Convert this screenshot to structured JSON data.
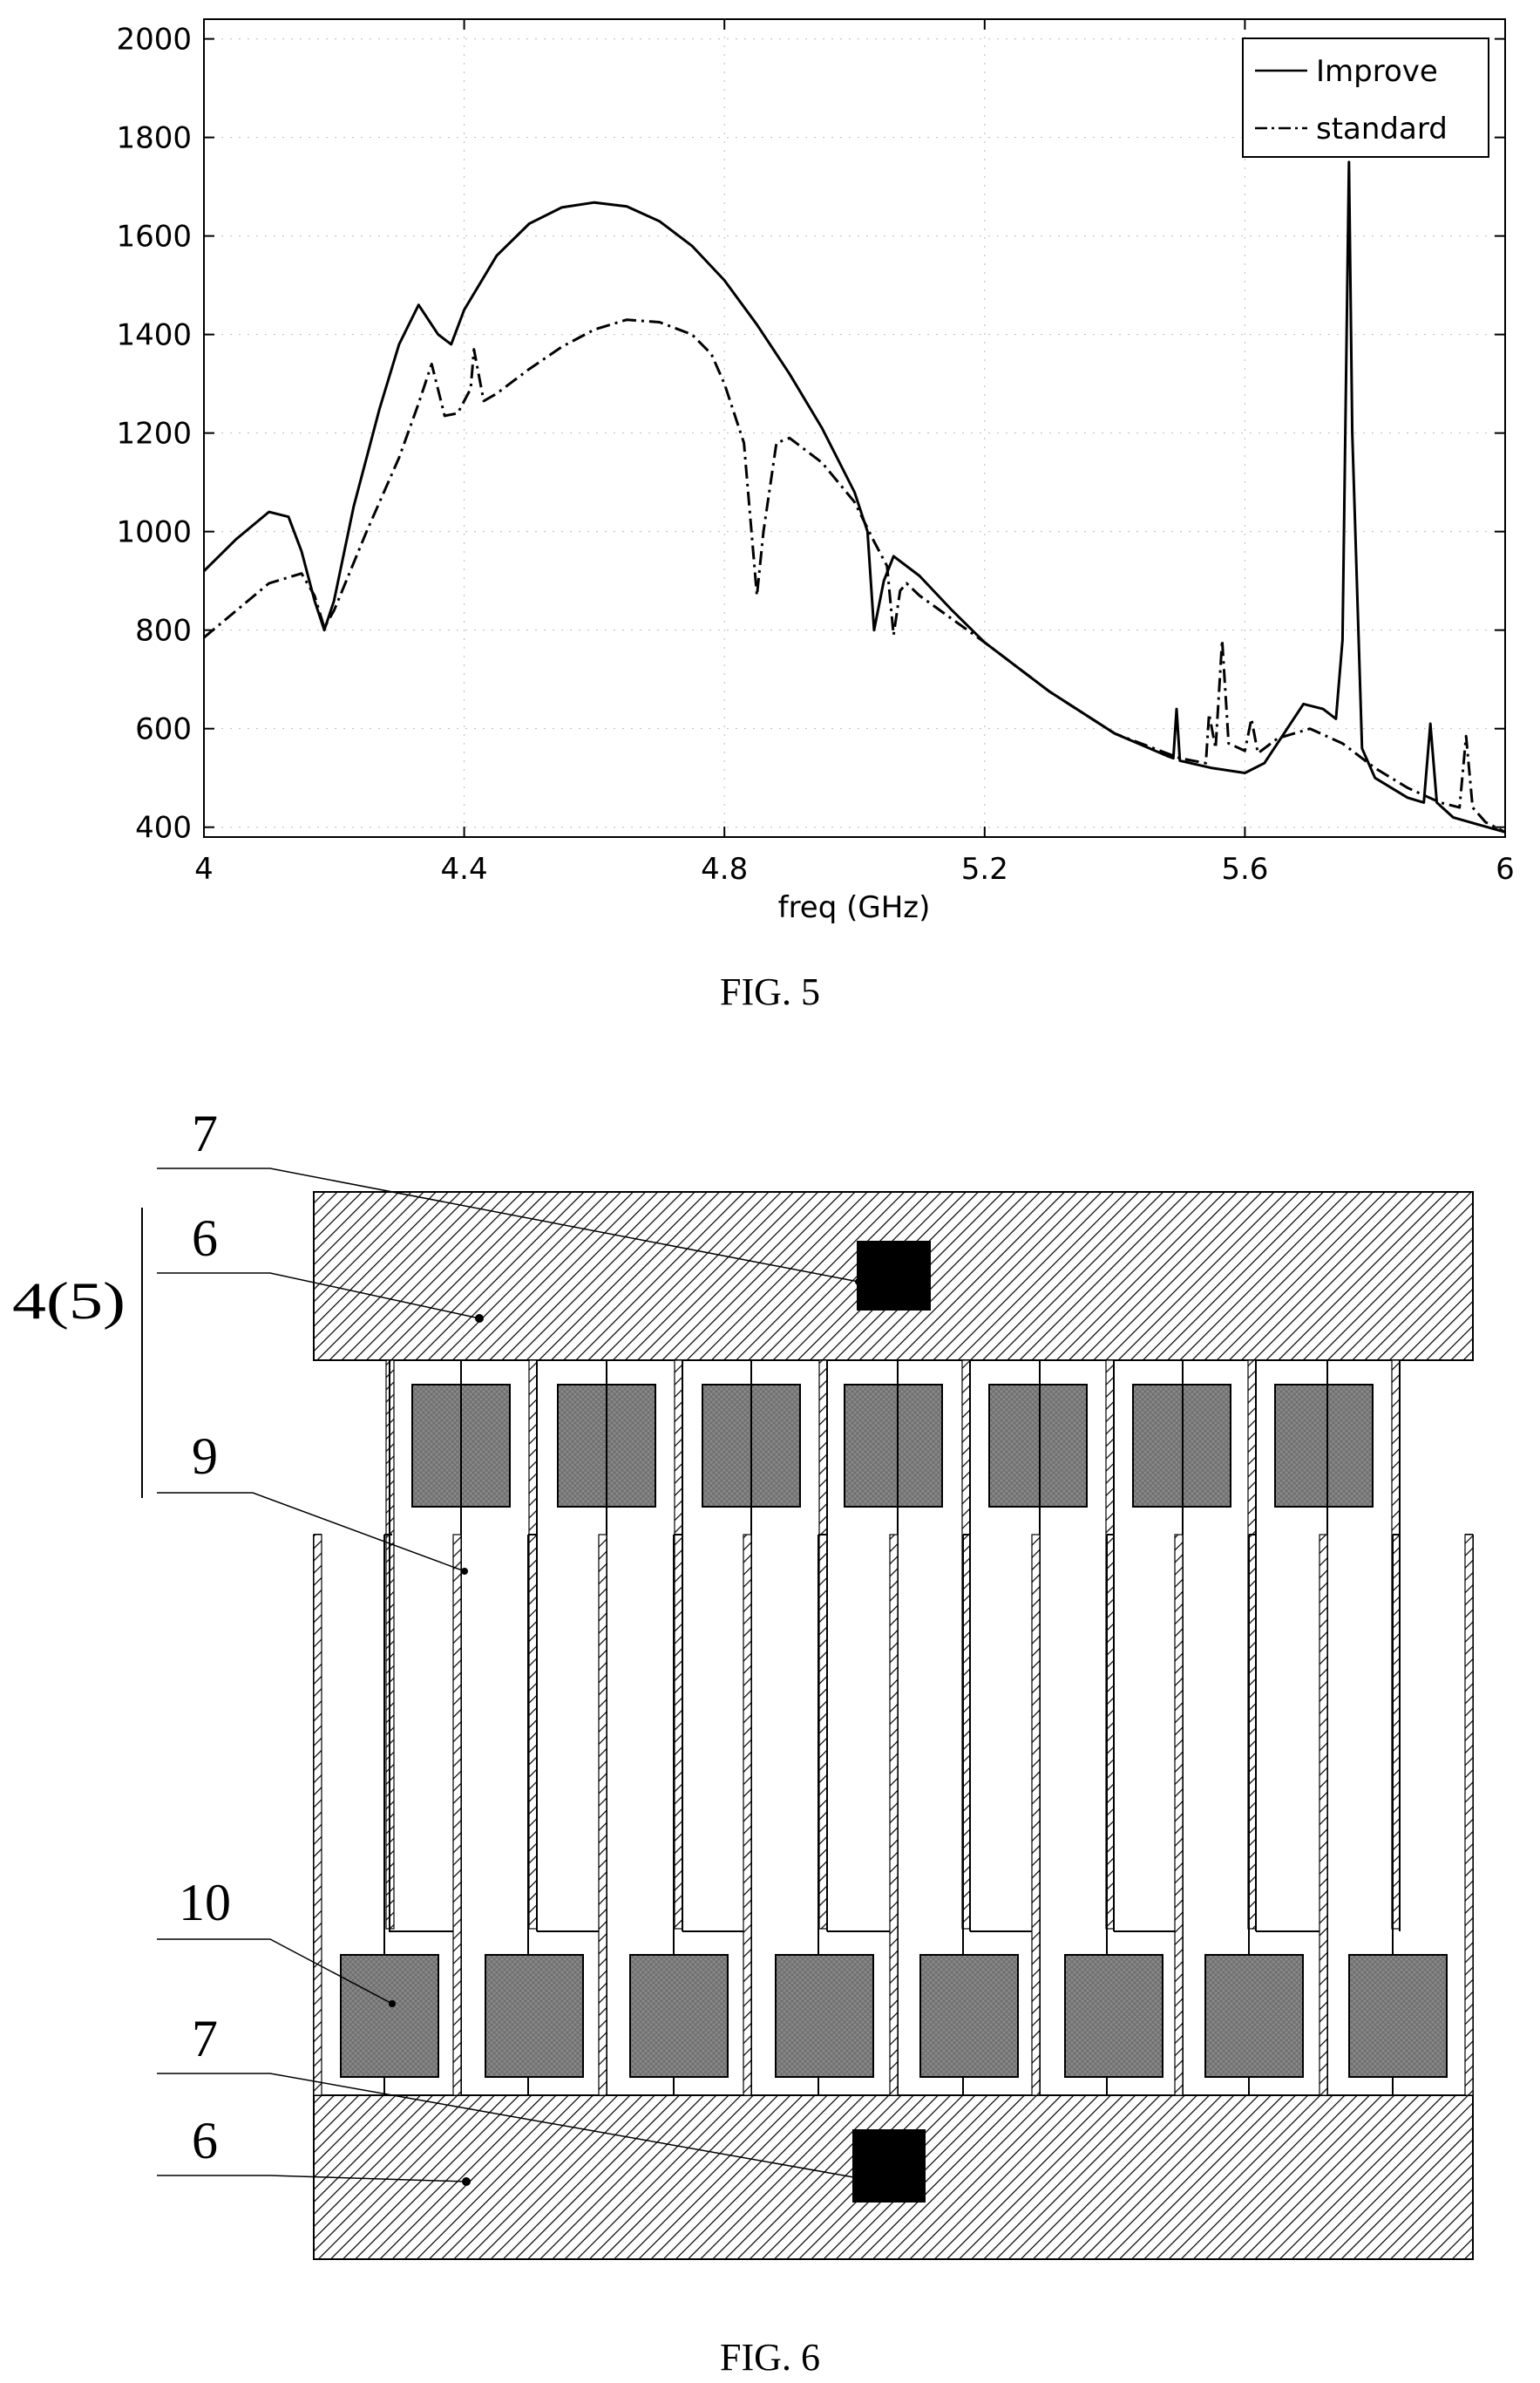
{
  "figures": {
    "fig5": {
      "caption": "FIG. 5"
    },
    "fig6": {
      "caption": "FIG. 6",
      "labels": {
        "ref_7_top": "7",
        "ref_6_top": "6",
        "ref_4_5": "4(5)",
        "ref_9": "9",
        "ref_10": "10",
        "ref_7_bottom": "7",
        "ref_6_bottom": "6"
      }
    }
  },
  "chart_data": {
    "type": "line",
    "title": "",
    "xlabel": "freq (GHz)",
    "ylabel": "",
    "xlim": [
      4,
      6
    ],
    "ylim": [
      380,
      2040
    ],
    "xticks": [
      4,
      4.4,
      4.8,
      5.2,
      5.6,
      6
    ],
    "xtick_labels": [
      "4",
      "4.4",
      "4.8",
      "5.2",
      "5.6",
      "6"
    ],
    "yticks": [
      400,
      600,
      800,
      1000,
      1200,
      1400,
      1600,
      1800,
      2000
    ],
    "ytick_labels": [
      "400",
      "600",
      "800",
      "1000",
      "1200",
      "1400",
      "1600",
      "1800",
      "2000"
    ],
    "grid": true,
    "legend_position": "top-right",
    "series": [
      {
        "name": "Improve",
        "style": "solid",
        "points": [
          [
            4.0,
            920
          ],
          [
            4.05,
            985
          ],
          [
            4.1,
            1040
          ],
          [
            4.13,
            1030
          ],
          [
            4.15,
            960
          ],
          [
            4.17,
            860
          ],
          [
            4.185,
            800
          ],
          [
            4.2,
            860
          ],
          [
            4.23,
            1050
          ],
          [
            4.27,
            1250
          ],
          [
            4.3,
            1380
          ],
          [
            4.33,
            1460
          ],
          [
            4.36,
            1400
          ],
          [
            4.38,
            1380
          ],
          [
            4.4,
            1450
          ],
          [
            4.45,
            1560
          ],
          [
            4.5,
            1625
          ],
          [
            4.55,
            1658
          ],
          [
            4.6,
            1668
          ],
          [
            4.65,
            1660
          ],
          [
            4.7,
            1630
          ],
          [
            4.75,
            1580
          ],
          [
            4.8,
            1510
          ],
          [
            4.85,
            1420
          ],
          [
            4.9,
            1320
          ],
          [
            4.95,
            1210
          ],
          [
            5.0,
            1080
          ],
          [
            5.02,
            1000
          ],
          [
            5.03,
            800
          ],
          [
            5.045,
            900
          ],
          [
            5.06,
            950
          ],
          [
            5.1,
            910
          ],
          [
            5.15,
            840
          ],
          [
            5.2,
            775
          ],
          [
            5.3,
            675
          ],
          [
            5.4,
            590
          ],
          [
            5.48,
            545
          ],
          [
            5.49,
            540
          ],
          [
            5.495,
            640
          ],
          [
            5.5,
            535
          ],
          [
            5.55,
            520
          ],
          [
            5.6,
            510
          ],
          [
            5.63,
            530
          ],
          [
            5.66,
            590
          ],
          [
            5.69,
            650
          ],
          [
            5.72,
            640
          ],
          [
            5.74,
            620
          ],
          [
            5.75,
            780
          ],
          [
            5.76,
            1750
          ],
          [
            5.765,
            1200
          ],
          [
            5.78,
            560
          ],
          [
            5.8,
            500
          ],
          [
            5.85,
            460
          ],
          [
            5.875,
            450
          ],
          [
            5.885,
            610
          ],
          [
            5.895,
            450
          ],
          [
            5.92,
            420
          ],
          [
            5.96,
            405
          ],
          [
            6.0,
            390
          ]
        ]
      },
      {
        "name": "standard",
        "style": "dashdot",
        "points": [
          [
            4.0,
            785
          ],
          [
            4.05,
            840
          ],
          [
            4.1,
            895
          ],
          [
            4.15,
            915
          ],
          [
            4.17,
            870
          ],
          [
            4.185,
            805
          ],
          [
            4.2,
            840
          ],
          [
            4.25,
            1000
          ],
          [
            4.3,
            1150
          ],
          [
            4.33,
            1260
          ],
          [
            4.35,
            1340
          ],
          [
            4.37,
            1235
          ],
          [
            4.39,
            1240
          ],
          [
            4.41,
            1290
          ],
          [
            4.415,
            1370
          ],
          [
            4.43,
            1265
          ],
          [
            4.45,
            1280
          ],
          [
            4.5,
            1330
          ],
          [
            4.55,
            1375
          ],
          [
            4.6,
            1410
          ],
          [
            4.65,
            1430
          ],
          [
            4.7,
            1425
          ],
          [
            4.75,
            1400
          ],
          [
            4.78,
            1360
          ],
          [
            4.8,
            1300
          ],
          [
            4.83,
            1180
          ],
          [
            4.85,
            870
          ],
          [
            4.86,
            1000
          ],
          [
            4.88,
            1180
          ],
          [
            4.9,
            1190
          ],
          [
            4.95,
            1140
          ],
          [
            5.0,
            1060
          ],
          [
            5.03,
            980
          ],
          [
            5.05,
            930
          ],
          [
            5.06,
            790
          ],
          [
            5.07,
            880
          ],
          [
            5.08,
            895
          ],
          [
            5.1,
            870
          ],
          [
            5.2,
            775
          ],
          [
            5.3,
            675
          ],
          [
            5.4,
            590
          ],
          [
            5.5,
            540
          ],
          [
            5.54,
            530
          ],
          [
            5.545,
            630
          ],
          [
            5.555,
            560
          ],
          [
            5.565,
            780
          ],
          [
            5.575,
            570
          ],
          [
            5.6,
            555
          ],
          [
            5.61,
            620
          ],
          [
            5.62,
            550
          ],
          [
            5.65,
            580
          ],
          [
            5.7,
            600
          ],
          [
            5.75,
            570
          ],
          [
            5.8,
            520
          ],
          [
            5.85,
            480
          ],
          [
            5.9,
            450
          ],
          [
            5.93,
            440
          ],
          [
            5.94,
            585
          ],
          [
            5.95,
            440
          ],
          [
            5.97,
            410
          ],
          [
            6.0,
            390
          ]
        ]
      }
    ]
  }
}
